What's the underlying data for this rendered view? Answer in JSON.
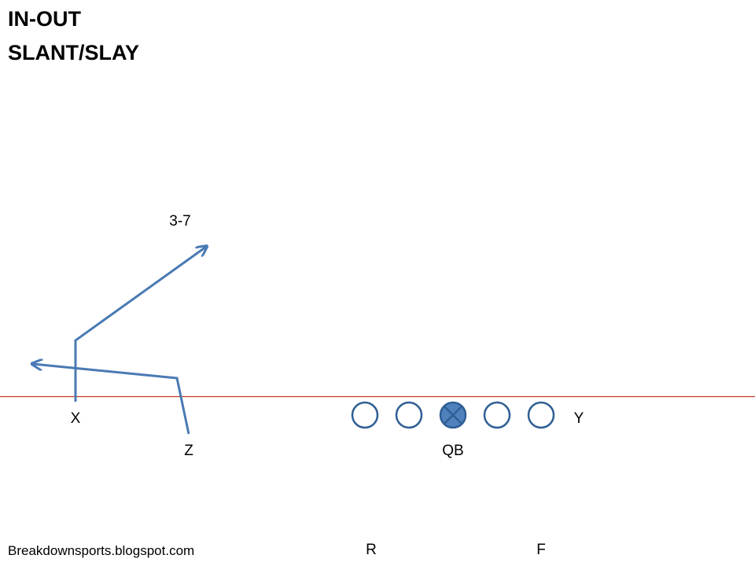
{
  "title": {
    "line1": "IN-OUT",
    "line2": "SLANT/SLAY"
  },
  "route_annotation": "3-7",
  "players": {
    "x": "X",
    "z": "Z",
    "qb": "QB",
    "y": "Y",
    "r": "R",
    "f": "F"
  },
  "footer": "Breakdownsports.blogspot.com",
  "colors": {
    "route": "#4a7ab4",
    "line_of_scrimmage": "#c0392b",
    "lineman_stroke": "#2f5f94",
    "center_fill": "#4f81bd"
  }
}
